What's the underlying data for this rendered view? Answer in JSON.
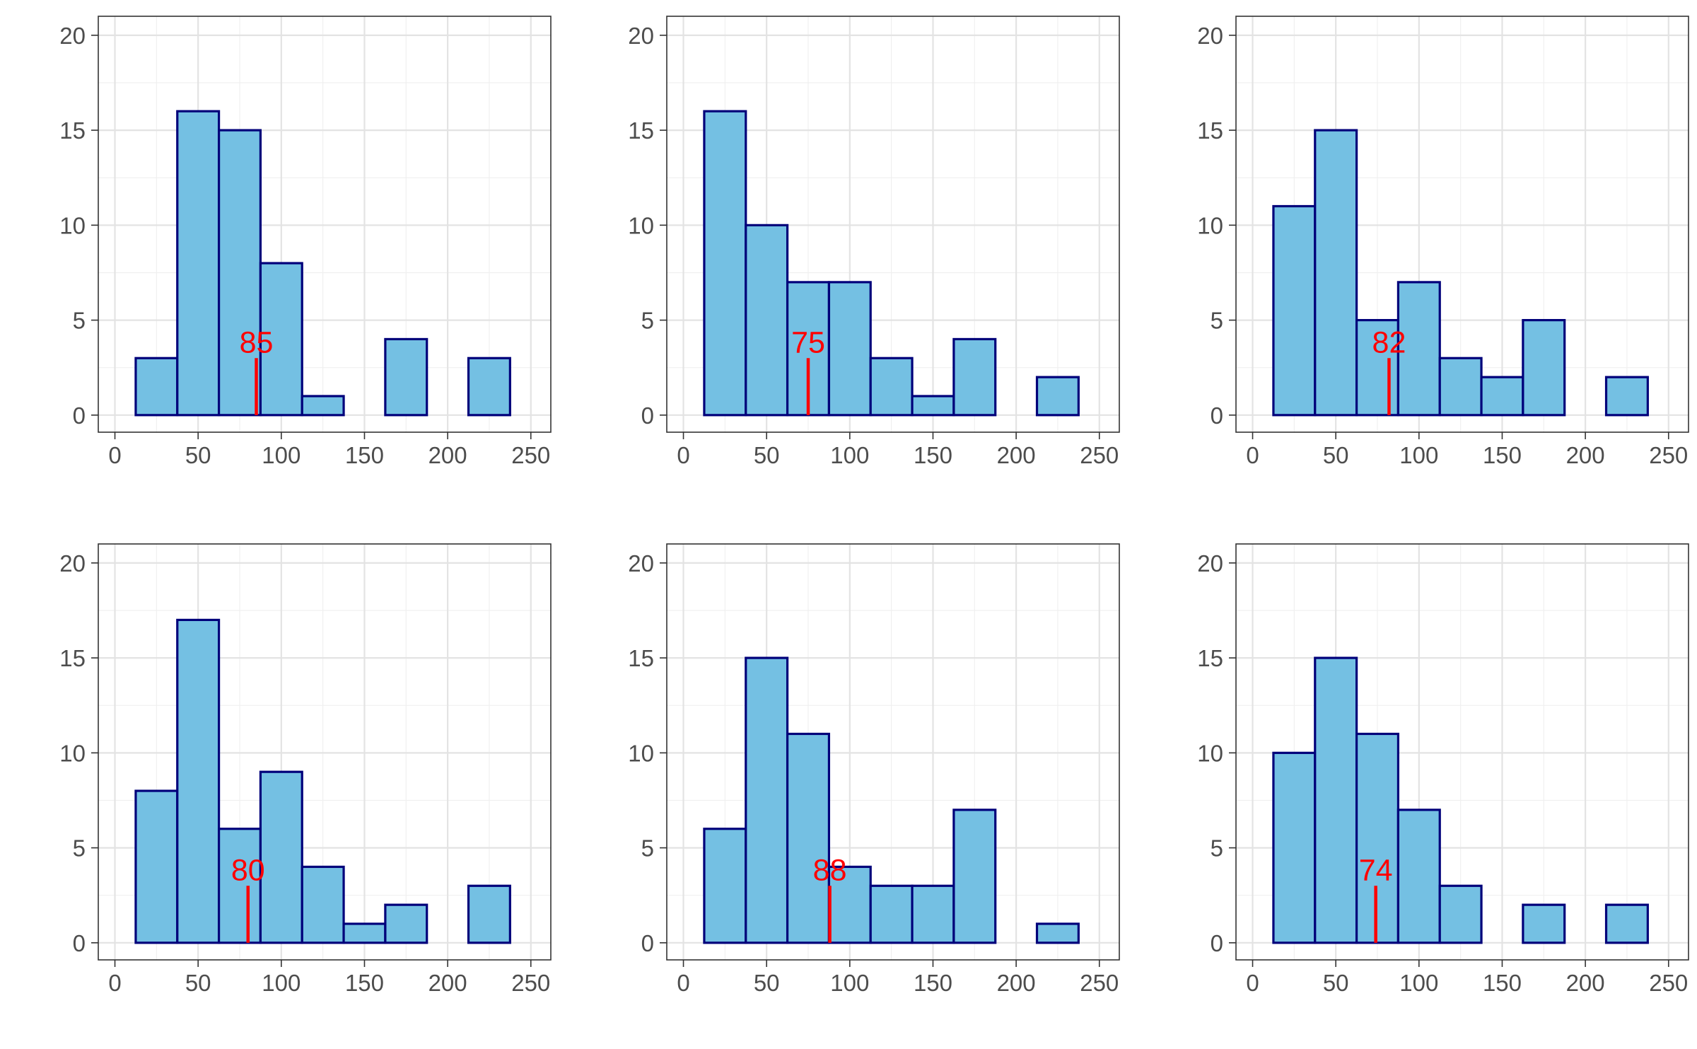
{
  "chart_data": [
    {
      "type": "bar",
      "title": "",
      "xlabel": "",
      "ylabel": "",
      "bin_width": 25,
      "bin_centers": [
        25,
        50,
        75,
        100,
        125,
        150,
        175,
        200,
        225
      ],
      "values": [
        3,
        16,
        15,
        8,
        1,
        0,
        4,
        0,
        3
      ],
      "mean_marker": {
        "value": 85,
        "label": "85",
        "height": 3
      },
      "xlim": [
        -10,
        262
      ],
      "ylim": [
        -0.9,
        21
      ],
      "xticks": [
        "0",
        "50",
        "100",
        "150",
        "200",
        "250"
      ],
      "yticks": [
        "0",
        "5",
        "10",
        "15",
        "20"
      ],
      "grid": true,
      "legend": "none"
    },
    {
      "type": "bar",
      "title": "",
      "xlabel": "",
      "ylabel": "",
      "bin_width": 25,
      "bin_centers": [
        25,
        50,
        75,
        100,
        125,
        150,
        175,
        200,
        225
      ],
      "values": [
        16,
        10,
        7,
        7,
        3,
        1,
        4,
        0,
        2
      ],
      "mean_marker": {
        "value": 75,
        "label": "75",
        "height": 3
      },
      "xlim": [
        -10,
        262
      ],
      "ylim": [
        -0.9,
        21
      ],
      "xticks": [
        "0",
        "50",
        "100",
        "150",
        "200",
        "250"
      ],
      "yticks": [
        "0",
        "5",
        "10",
        "15",
        "20"
      ],
      "grid": true,
      "legend": "none"
    },
    {
      "type": "bar",
      "title": "",
      "xlabel": "",
      "ylabel": "",
      "bin_width": 25,
      "bin_centers": [
        25,
        50,
        75,
        100,
        125,
        150,
        175,
        200,
        225
      ],
      "values": [
        11,
        15,
        5,
        7,
        3,
        2,
        5,
        0,
        2
      ],
      "mean_marker": {
        "value": 82,
        "label": "82",
        "height": 3
      },
      "xlim": [
        -10,
        262
      ],
      "ylim": [
        -0.9,
        21
      ],
      "xticks": [
        "0",
        "50",
        "100",
        "150",
        "200",
        "250"
      ],
      "yticks": [
        "0",
        "5",
        "10",
        "15",
        "20"
      ],
      "grid": true,
      "legend": "none"
    },
    {
      "type": "bar",
      "title": "",
      "xlabel": "",
      "ylabel": "",
      "bin_width": 25,
      "bin_centers": [
        25,
        50,
        75,
        100,
        125,
        150,
        175,
        200,
        225
      ],
      "values": [
        8,
        17,
        6,
        9,
        4,
        1,
        2,
        0,
        3
      ],
      "mean_marker": {
        "value": 80,
        "label": "80",
        "height": 3
      },
      "xlim": [
        -10,
        262
      ],
      "ylim": [
        -0.9,
        21
      ],
      "xticks": [
        "0",
        "50",
        "100",
        "150",
        "200",
        "250"
      ],
      "yticks": [
        "0",
        "5",
        "10",
        "15",
        "20"
      ],
      "grid": true,
      "legend": "none"
    },
    {
      "type": "bar",
      "title": "",
      "xlabel": "",
      "ylabel": "",
      "bin_width": 25,
      "bin_centers": [
        25,
        50,
        75,
        100,
        125,
        150,
        175,
        200,
        225
      ],
      "values": [
        6,
        15,
        11,
        4,
        3,
        3,
        7,
        0,
        1
      ],
      "mean_marker": {
        "value": 88,
        "label": "88",
        "height": 3
      },
      "xlim": [
        -10,
        262
      ],
      "ylim": [
        -0.9,
        21
      ],
      "xticks": [
        "0",
        "50",
        "100",
        "150",
        "200",
        "250"
      ],
      "yticks": [
        "0",
        "5",
        "10",
        "15",
        "20"
      ],
      "grid": true,
      "legend": "none"
    },
    {
      "type": "bar",
      "title": "",
      "xlabel": "",
      "ylabel": "",
      "bin_width": 25,
      "bin_centers": [
        25,
        50,
        75,
        100,
        125,
        150,
        175,
        200,
        225
      ],
      "values": [
        10,
        15,
        11,
        7,
        3,
        0,
        2,
        0,
        2
      ],
      "mean_marker": {
        "value": 74,
        "label": "74",
        "height": 3
      },
      "xlim": [
        -10,
        262
      ],
      "ylim": [
        -0.9,
        21
      ],
      "xticks": [
        "0",
        "50",
        "100",
        "150",
        "200",
        "250"
      ],
      "yticks": [
        "0",
        "5",
        "10",
        "15",
        "20"
      ],
      "grid": true,
      "legend": "none"
    }
  ],
  "colors": {
    "bar_fill": "#74c0e3",
    "bar_outline": "#00007a",
    "mean_marker": "#ff0000"
  }
}
